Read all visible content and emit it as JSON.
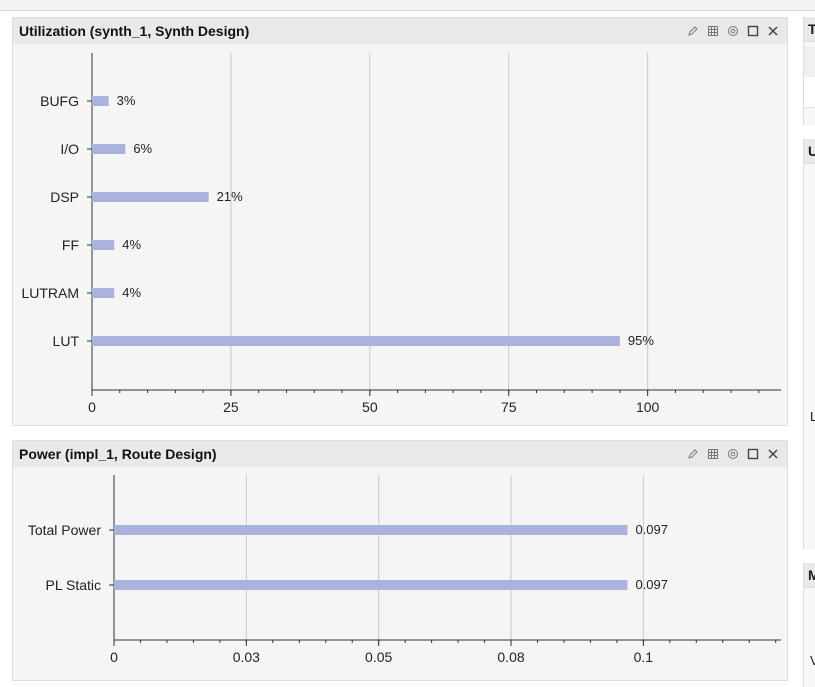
{
  "utilization_panel": {
    "title": "Utilization (synth_1, Synth Design)",
    "tools": [
      "edit-icon",
      "grid-icon",
      "settings-icon",
      "maximize-icon",
      "close-icon"
    ]
  },
  "power_panel": {
    "title": "Power (impl_1, Route Design)",
    "tools": [
      "edit-icon",
      "grid-icon",
      "settings-icon",
      "maximize-icon",
      "close-icon"
    ]
  },
  "right_strip": {
    "header_letters": [
      "T",
      "U",
      "M"
    ],
    "side_letters": [
      "L",
      "V"
    ]
  },
  "colors": {
    "bar": "#a9b3dd",
    "grid": "#c9c9c9",
    "axis": "#333333"
  },
  "chart_data": [
    {
      "type": "bar",
      "orientation": "horizontal",
      "title": "",
      "categories": [
        "BUFG",
        "I/O",
        "DSP",
        "FF",
        "LUTRAM",
        "LUT"
      ],
      "values": [
        3,
        6,
        21,
        4,
        4,
        95
      ],
      "value_labels": [
        "3%",
        "6%",
        "21%",
        "4%",
        "4%",
        "95%"
      ],
      "xlim": [
        0,
        124
      ],
      "xticks": [
        0,
        25,
        50,
        75,
        100
      ],
      "xtick_labels": [
        "0",
        "25",
        "50",
        "75",
        "100"
      ],
      "grid": true
    },
    {
      "type": "bar",
      "orientation": "horizontal",
      "title": "",
      "categories": [
        "Total Power",
        "PL Static"
      ],
      "values": [
        0.097,
        0.097
      ],
      "value_labels": [
        "0.097",
        "0.097"
      ],
      "xlim": [
        0,
        0.126
      ],
      "xticks": [
        0,
        0.025,
        0.05,
        0.075,
        0.1
      ],
      "xtick_labels": [
        "0",
        "0.03",
        "0.05",
        "0.08",
        "0.1"
      ],
      "grid": true
    }
  ]
}
